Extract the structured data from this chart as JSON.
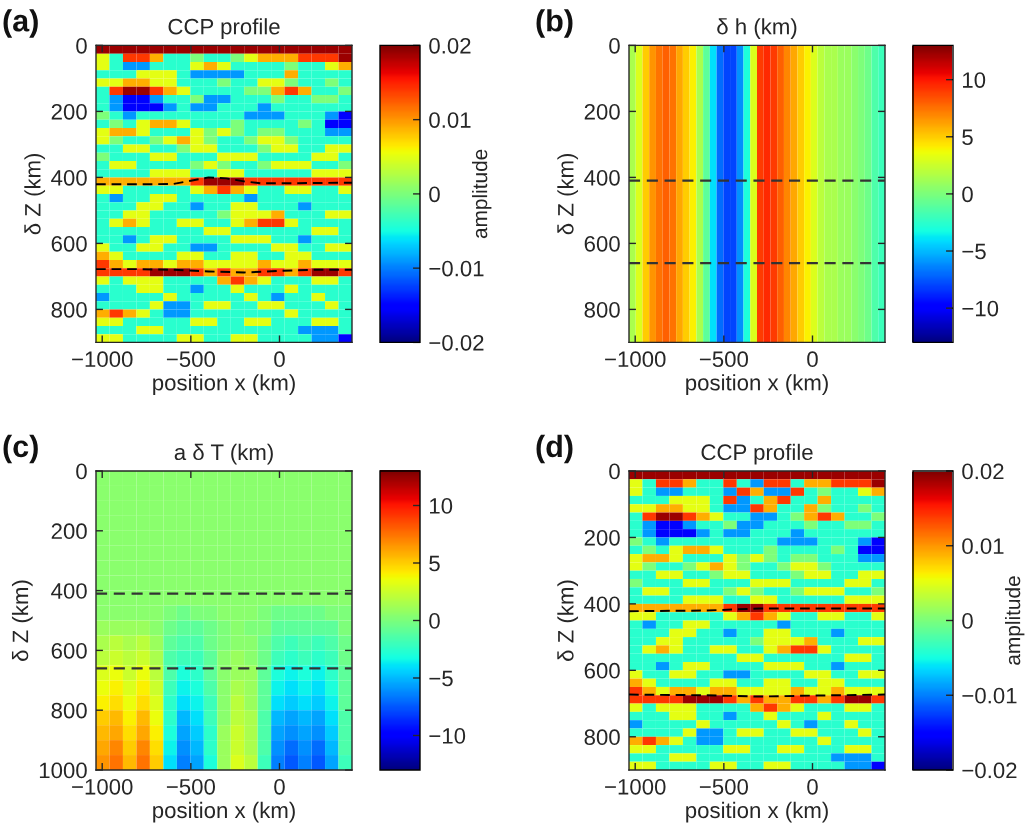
{
  "chart_data": [
    {
      "type": "heatmap",
      "title": "CCP profile",
      "xlabel": "position x (km)",
      "ylabel": "δ Z (km)",
      "clabel": "amplitude",
      "annotations": [
        "(a)"
      ],
      "xlim": [
        -1035,
        409
      ],
      "xticks": [
        -1000,
        -500,
        0
      ],
      "ylim": [
        900,
        0
      ],
      "yticks": [
        0,
        200,
        400,
        600,
        800
      ],
      "clim": [
        -0.02,
        0.02
      ],
      "cticks": [
        -0.02,
        -0.01,
        0,
        0.01,
        0.02
      ],
      "x": [
        -997,
        -921,
        -845,
        -769,
        -693,
        -617,
        -541,
        -465,
        -389,
        -313,
        -237,
        -161,
        -85,
        -9,
        67,
        143,
        219,
        295,
        371
      ],
      "cells": [
        [
          0.019,
          0.019,
          0.019,
          0.019,
          0.019,
          0.019,
          0.019,
          0.019,
          0.019,
          0.019,
          0.019,
          0.019,
          0.019,
          0.019,
          0.019,
          0.019,
          0.019,
          0.019,
          0.019
        ],
        [
          0.005,
          -0.004,
          0.014,
          0.014,
          0.009,
          -0.004,
          -0.004,
          0,
          -0.004,
          -0.004,
          0,
          0.005,
          0.009,
          0.009,
          0.009,
          0.014,
          0.014,
          0.014,
          0.019
        ],
        [
          0.005,
          -0.004,
          -0.009,
          -0.009,
          -0.004,
          -0.004,
          -0.004,
          0.005,
          0.009,
          0.005,
          -0.004,
          -0.004,
          -0.004,
          -0.004,
          0,
          -0.004,
          -0.004,
          0.005,
          0.009
        ],
        [
          -0.004,
          -0.004,
          -0.004,
          0.005,
          0.005,
          0.005,
          -0.004,
          -0.009,
          -0.009,
          -0.009,
          -0.009,
          -0.004,
          -0.004,
          -0.004,
          0.009,
          -0.004,
          -0.004,
          -0.004,
          -0.004
        ],
        [
          0.005,
          0.005,
          0.009,
          0.009,
          0.005,
          0.005,
          -0.004,
          -0.004,
          -0.004,
          0,
          -0.004,
          -0.004,
          0.005,
          0.005,
          0,
          -0.004,
          -0.004,
          0,
          -0.004
        ],
        [
          -0.004,
          0.014,
          0.019,
          0.019,
          0.014,
          0.009,
          0.005,
          -0.004,
          -0.004,
          -0.004,
          -0.004,
          0,
          0,
          0.009,
          0.014,
          0.009,
          -0.004,
          -0.004,
          0
        ],
        [
          -0.004,
          -0.009,
          -0.015,
          -0.015,
          -0.009,
          -0.004,
          -0.004,
          0,
          -0.009,
          -0.009,
          -0.004,
          -0.004,
          -0.004,
          0,
          -0.004,
          -0.004,
          0,
          0,
          -0.004
        ],
        [
          -0.004,
          -0.009,
          -0.015,
          -0.015,
          -0.015,
          -0.009,
          -0.004,
          -0.009,
          -0.009,
          -0.004,
          -0.004,
          -0.004,
          -0.009,
          -0.004,
          -0.004,
          -0.004,
          -0.004,
          -0.004,
          -0.004
        ],
        [
          0,
          -0.004,
          -0.009,
          -0.004,
          -0.004,
          -0.004,
          -0.004,
          -0.004,
          -0.004,
          -0.004,
          -0.004,
          -0.009,
          -0.009,
          -0.009,
          -0.004,
          -0.004,
          -0.004,
          -0.009,
          -0.015
        ],
        [
          -0.004,
          0,
          -0.004,
          0.005,
          0.009,
          0.009,
          0.005,
          -0.004,
          -0.004,
          -0.004,
          0,
          -0.004,
          -0.004,
          -0.004,
          -0.004,
          0,
          -0.004,
          -0.015,
          -0.015
        ],
        [
          0.005,
          0.009,
          0.009,
          0.005,
          -0.004,
          -0.004,
          -0.004,
          0.005,
          0,
          0.005,
          0,
          -0.004,
          0,
          0,
          -0.004,
          -0.004,
          -0.004,
          -0.009,
          -0.009
        ],
        [
          0.005,
          0,
          -0.004,
          -0.004,
          0,
          0.005,
          0.009,
          0.005,
          0,
          -0.004,
          -0.004,
          0,
          0.005,
          0.005,
          0,
          -0.004,
          -0.004,
          -0.004,
          -0.004
        ],
        [
          -0.004,
          -0.004,
          0.005,
          0.005,
          -0.004,
          -0.004,
          0,
          0.005,
          0.005,
          -0.004,
          -0.004,
          -0.004,
          0,
          0.005,
          0.005,
          -0.004,
          -0.004,
          0.005,
          0.005
        ],
        [
          0,
          -0.004,
          -0.004,
          -0.004,
          0.005,
          0.005,
          -0.004,
          -0.004,
          -0.004,
          0.005,
          0.005,
          0.005,
          -0.004,
          -0.004,
          -0.004,
          -0.004,
          0.005,
          0.005,
          -0.004
        ],
        [
          -0.004,
          0.005,
          0.005,
          -0.004,
          -0.004,
          -0.004,
          -0.004,
          0,
          0.005,
          0,
          -0.004,
          -0.004,
          0,
          0.005,
          0.005,
          0.005,
          -0.004,
          -0.004,
          0
        ],
        [
          -0.004,
          -0.004,
          -0.004,
          -0.004,
          0.005,
          0.005,
          0.005,
          -0.004,
          -0.004,
          0.005,
          0.005,
          -0.004,
          -0.004,
          -0.004,
          -0.004,
          -0.004,
          0.005,
          0.005,
          0.005
        ],
        [
          0.009,
          0.009,
          0.009,
          0.009,
          0.009,
          0.009,
          0.009,
          0.014,
          0.019,
          0.019,
          0.019,
          0.014,
          0.014,
          0.014,
          0.014,
          0.014,
          0.014,
          0.014,
          0.014
        ],
        [
          0.005,
          0.005,
          -0.004,
          -0.004,
          -0.004,
          -0.004,
          -0.004,
          0.005,
          0.009,
          0.014,
          0.009,
          0.005,
          -0.004,
          -0.004,
          0.005,
          0.005,
          -0.004,
          -0.004,
          0.005
        ],
        [
          -0.004,
          -0.009,
          -0.004,
          -0.004,
          0.005,
          0.005,
          -0.004,
          -0.004,
          -0.004,
          -0.004,
          -0.004,
          -0.009,
          -0.004,
          -0.004,
          -0.004,
          -0.004,
          -0.004,
          -0.004,
          -0.004
        ],
        [
          -0.004,
          -0.004,
          -0.004,
          0.005,
          0.005,
          -0.004,
          -0.004,
          -0.009,
          -0.004,
          -0.004,
          0.005,
          0.005,
          -0.004,
          -0.004,
          -0.004,
          -0.009,
          -0.004,
          -0.004,
          -0.004
        ],
        [
          -0.004,
          -0.004,
          0.005,
          0.005,
          -0.004,
          -0.004,
          -0.004,
          -0.004,
          -0.004,
          0,
          0.005,
          0.005,
          0.005,
          0.009,
          -0.004,
          -0.004,
          -0.004,
          0.005,
          0.005
        ],
        [
          -0.004,
          0.005,
          0.009,
          0.005,
          -0.004,
          -0.004,
          0.005,
          0.005,
          -0.004,
          -0.004,
          0.005,
          0.009,
          0.014,
          0.014,
          0.005,
          -0.004,
          -0.004,
          -0.004,
          -0.004
        ],
        [
          -0.004,
          -0.004,
          -0.004,
          -0.004,
          -0.004,
          -0.004,
          -0.004,
          -0.004,
          0.005,
          0.005,
          -0.004,
          -0.004,
          -0.004,
          -0.004,
          -0.004,
          -0.004,
          0.005,
          0.005,
          -0.004
        ],
        [
          -0.004,
          -0.004,
          -0.009,
          -0.004,
          0.005,
          0.005,
          -0.004,
          -0.004,
          -0.004,
          -0.004,
          0.005,
          0.005,
          0.005,
          -0.004,
          -0.004,
          -0.009,
          -0.004,
          -0.004,
          -0.004
        ],
        [
          0.005,
          -0.004,
          -0.004,
          0.005,
          0.005,
          -0.004,
          -0.004,
          -0.009,
          -0.009,
          -0.004,
          -0.004,
          -0.004,
          -0.004,
          0.005,
          0.005,
          -0.004,
          -0.004,
          0.005,
          0.005
        ],
        [
          0.009,
          0.005,
          -0.004,
          -0.004,
          -0.004,
          -0.004,
          0.005,
          0.005,
          -0.004,
          -0.004,
          0.005,
          0.005,
          -0.004,
          -0.004,
          0.005,
          0.005,
          -0.004,
          -0.004,
          -0.004
        ],
        [
          0.014,
          0.009,
          0.005,
          0.009,
          0.009,
          0.005,
          0.009,
          0.009,
          0.005,
          0.005,
          0.005,
          0.005,
          0.009,
          0.005,
          0.005,
          0.009,
          0.005,
          0.005,
          0.005
        ],
        [
          0.014,
          0.014,
          0.014,
          0.014,
          0.019,
          0.019,
          0.019,
          0.014,
          0.009,
          0.014,
          0.009,
          0.009,
          0.014,
          0.014,
          0.009,
          0.014,
          0.019,
          0.019,
          0.014
        ],
        [
          0.005,
          -0.004,
          0.005,
          0.005,
          0.005,
          -0.004,
          -0.004,
          -0.004,
          -0.004,
          0.009,
          0.014,
          0.009,
          0.005,
          -0.004,
          -0.004,
          -0.004,
          0.005,
          0.005,
          -0.004
        ],
        [
          -0.004,
          -0.004,
          -0.004,
          0.005,
          0.005,
          -0.004,
          -0.004,
          -0.009,
          -0.004,
          -0.004,
          0.005,
          -0.004,
          -0.004,
          -0.004,
          0.005,
          -0.004,
          -0.004,
          -0.004,
          -0.004
        ],
        [
          -0.009,
          -0.004,
          -0.004,
          -0.004,
          -0.004,
          0.005,
          -0.004,
          -0.004,
          -0.004,
          -0.004,
          -0.004,
          0.005,
          -0.004,
          -0.009,
          -0.004,
          -0.004,
          0.005,
          -0.004,
          -0.004
        ],
        [
          -0.004,
          -0.004,
          -0.004,
          -0.004,
          0.005,
          -0.009,
          -0.009,
          -0.004,
          0.005,
          0.005,
          -0.004,
          -0.004,
          0.005,
          0.005,
          -0.004,
          -0.004,
          -0.004,
          0.005,
          -0.004
        ],
        [
          0.009,
          0.014,
          0.009,
          0.005,
          -0.004,
          -0.009,
          -0.009,
          -0.004,
          -0.004,
          -0.004,
          -0.004,
          -0.004,
          -0.004,
          -0.004,
          0.005,
          -0.004,
          -0.004,
          -0.004,
          -0.004
        ],
        [
          0.005,
          0.005,
          -0.004,
          -0.004,
          -0.004,
          -0.004,
          -0.004,
          0.005,
          0.005,
          -0.004,
          -0.004,
          0.005,
          0.005,
          -0.004,
          -0.004,
          -0.004,
          0.005,
          0.005,
          -0.004
        ],
        [
          -0.004,
          -0.004,
          -0.004,
          0.005,
          0.005,
          -0.004,
          -0.004,
          -0.004,
          -0.004,
          -0.004,
          -0.004,
          -0.004,
          -0.004,
          -0.004,
          -0.004,
          -0.009,
          -0.009,
          -0.009,
          -0.004
        ],
        [
          0.005,
          0.005,
          -0.004,
          -0.004,
          -0.004,
          -0.004,
          0.005,
          0.005,
          -0.004,
          -0.004,
          0.005,
          0.005,
          -0.004,
          -0.004,
          -0.004,
          -0.004,
          -0.009,
          -0.009,
          -0.015
        ]
      ],
      "series": [
        {
          "type": "line",
          "color": "#000000",
          "line_style": "dashed",
          "x": [
            -1035,
            -800,
            -600,
            -500,
            -400,
            -300,
            -200,
            -100,
            0,
            200,
            409
          ],
          "values": [
            421,
            421,
            420,
            410,
            400,
            403,
            412,
            418,
            418,
            417,
            416
          ]
        },
        {
          "type": "line",
          "color": "#000000",
          "line_style": "dashed",
          "x": [
            -1035,
            -800,
            -600,
            -400,
            -200,
            -100,
            0,
            200,
            409
          ],
          "values": [
            678,
            678,
            680,
            685,
            688,
            686,
            683,
            680,
            680
          ]
        }
      ]
    },
    {
      "type": "heatmap",
      "title": "δ h (km)",
      "xlabel": "position x (km)",
      "ylabel": "δ Z (km)",
      "annotations": [
        "(b)"
      ],
      "xlim": [
        -1035,
        409
      ],
      "xticks": [
        -1000,
        -500,
        0
      ],
      "ylim": [
        900,
        0
      ],
      "yticks": [
        0,
        200,
        400,
        600,
        800
      ],
      "clim": [
        -13,
        13
      ],
      "cticks": [
        -10,
        -5,
        0,
        5,
        10
      ],
      "x": [
        -1016,
        -978,
        -940,
        -902,
        -864,
        -826,
        -788,
        -750,
        -712,
        -674,
        -636,
        -598,
        -560,
        -522,
        -484,
        -446,
        -408,
        -370,
        -332,
        -294,
        -256,
        -218,
        -180,
        -142,
        -104,
        -66,
        -28,
        10,
        48,
        86,
        124,
        162,
        200,
        238,
        276,
        314,
        352,
        390
      ],
      "cells": [
        [
          1.5,
          3,
          5,
          6.5,
          7.5,
          8,
          7.5,
          6,
          5,
          4,
          1.5,
          -1,
          -4,
          -7,
          -8,
          -8,
          -6,
          -3,
          3,
          9,
          9.5,
          9,
          8,
          7,
          6,
          5,
          4,
          3,
          2,
          1.5,
          1.5,
          1,
          1,
          0.5,
          0,
          -0.5,
          -1.5,
          -2
        ]
      ],
      "ref_lines": [
        {
          "axis": "y",
          "value": 410,
          "color": "#333333",
          "line_style": "dashed"
        },
        {
          "axis": "y",
          "value": 660,
          "color": "#333333",
          "line_style": "dashed"
        }
      ]
    },
    {
      "type": "heatmap",
      "title": "a δ T (km)",
      "xlabel": "position x (km)",
      "ylabel": "δ Z (km)",
      "annotations": [
        "(c)"
      ],
      "xlim": [
        -1035,
        409
      ],
      "xticks": [
        -1000,
        -500,
        0
      ],
      "ylim": [
        1000,
        0
      ],
      "yticks": [
        0,
        200,
        400,
        600,
        800,
        1000
      ],
      "clim": [
        -13,
        13
      ],
      "cticks": [
        -10,
        -5,
        0,
        5,
        10
      ],
      "x": [
        -997,
        -921,
        -845,
        -769,
        -693,
        -617,
        -541,
        -465,
        -389,
        -313,
        -237,
        -161,
        -85,
        -9,
        67,
        143,
        219,
        295,
        371
      ],
      "cells": [
        [
          0.5,
          0.5,
          0.5,
          0.5,
          0.5,
          0.5,
          0.5,
          0.5,
          0.5,
          0.5,
          0.5,
          0.5,
          0.5,
          0.5,
          0.5,
          0.5,
          0.5,
          0.5,
          0.5
        ],
        [
          0.5,
          0.5,
          0.5,
          0.5,
          0.5,
          0.5,
          0.5,
          0.5,
          0.5,
          0.5,
          0.5,
          0.5,
          0.5,
          0.5,
          0.5,
          0.5,
          0.5,
          0.5,
          0.5
        ],
        [
          0.5,
          0.5,
          0.5,
          0.5,
          0.5,
          0.5,
          0.5,
          0.5,
          0.5,
          0.5,
          0.5,
          0.5,
          0.5,
          0.5,
          0.5,
          0.5,
          0.5,
          0.5,
          0.5
        ],
        [
          0.5,
          0.5,
          0.5,
          0.5,
          0.5,
          0.5,
          0.5,
          0.5,
          0.5,
          0.5,
          0.5,
          0.5,
          0.5,
          0.5,
          0.5,
          0.5,
          0.5,
          0.5,
          0.5
        ],
        [
          0.5,
          0.5,
          0.5,
          0.5,
          0.5,
          0.5,
          0.5,
          0.5,
          0.5,
          0.5,
          0.5,
          0.5,
          0.5,
          0.5,
          0.5,
          0.5,
          0.5,
          0.5,
          0.5
        ],
        [
          0.5,
          0.5,
          0.5,
          0.5,
          0.5,
          0.5,
          0.5,
          0.5,
          0.5,
          0.5,
          0.5,
          0.5,
          0.5,
          0.5,
          0.5,
          0.5,
          0.5,
          0.5,
          0.5
        ],
        [
          0.5,
          0.5,
          0.5,
          0.5,
          0.5,
          0.5,
          0.5,
          0.5,
          0.5,
          0.5,
          0.5,
          0.5,
          0.5,
          0.5,
          0.5,
          0.5,
          0.5,
          0.5,
          0.5
        ],
        [
          0.5,
          0.5,
          0.5,
          0.5,
          0.5,
          0.5,
          0.5,
          0.5,
          0.5,
          0.5,
          0.5,
          0.5,
          0.5,
          0.5,
          0.5,
          0.5,
          0.5,
          0.5,
          0.5
        ],
        [
          0.5,
          0.5,
          0.5,
          0.5,
          0.5,
          0.5,
          0.5,
          0.5,
          0.5,
          0.5,
          0.5,
          0.5,
          0.5,
          0.5,
          0.5,
          0.5,
          0.5,
          0.5,
          0.5
        ],
        [
          0.5,
          0.5,
          0.5,
          0.5,
          0.5,
          0,
          -0.5,
          0,
          0,
          0.5,
          0.5,
          0.5,
          0,
          -0.5,
          -0.5,
          -0.5,
          -0.5,
          0,
          0
        ],
        [
          1,
          1,
          1,
          1,
          0.5,
          -0.5,
          -1,
          -1,
          -0.5,
          0,
          0.5,
          0,
          0,
          -1,
          -1,
          -1,
          -1,
          -1,
          0
        ],
        [
          1.5,
          2,
          1.5,
          2,
          1,
          -1,
          -1.5,
          -1.5,
          -0.5,
          0,
          0.5,
          0.5,
          -0.5,
          -1.5,
          -2,
          -1.5,
          -2,
          -1.5,
          -0.5
        ],
        [
          2,
          2.5,
          2,
          2.5,
          1.5,
          -1.5,
          -2,
          -2,
          -1,
          0.5,
          1,
          0.5,
          -0.5,
          -2,
          -2.5,
          -2,
          -2.5,
          -2,
          -0.5
        ],
        [
          3,
          3.5,
          2.5,
          3.5,
          2,
          -1.5,
          -3,
          -2.5,
          -1,
          0.5,
          1,
          1,
          -1,
          -3,
          -3.5,
          -3,
          -3.5,
          -2.5,
          -1
        ],
        [
          3.5,
          4,
          3,
          4,
          2.5,
          -2,
          -3.5,
          -3,
          -1.5,
          0.5,
          1.5,
          1,
          -1,
          -3.5,
          -4,
          -3.5,
          -4,
          -3,
          -1
        ],
        [
          4,
          4.5,
          3.5,
          4.5,
          3,
          -2.5,
          -4,
          -3.5,
          -2,
          0.5,
          2,
          1,
          -1,
          -4,
          -4.5,
          -4,
          -4.5,
          -3.5,
          -1
        ],
        [
          5,
          5.5,
          4,
          5.5,
          3.5,
          -2.5,
          -5,
          -4,
          -2,
          0.5,
          2,
          1.5,
          -1.5,
          -5,
          -5.5,
          -5,
          -5.5,
          -4,
          -1.5
        ],
        [
          5.5,
          6,
          4.5,
          6,
          4,
          -3,
          -5.5,
          -4.5,
          -2.5,
          1,
          2.5,
          1.5,
          -1.5,
          -5.5,
          -6,
          -5.5,
          -6,
          -4.5,
          -1.5
        ],
        [
          6,
          7,
          5,
          7,
          4.5,
          -3.5,
          -6,
          -5,
          -2.5,
          1,
          2.5,
          1.5,
          -1.5,
          -6,
          -7,
          -6,
          -7,
          -5,
          -1.5
        ],
        [
          6.5,
          7.5,
          5.5,
          7.5,
          5,
          -4,
          -6.5,
          -5.5,
          -3,
          1,
          3,
          2,
          -2,
          -6.5,
          -7.5,
          -6.5,
          -7.5,
          -5.5,
          -2
        ]
      ],
      "ref_lines": [
        {
          "axis": "y",
          "value": 410,
          "color": "#333333",
          "line_style": "dashed"
        },
        {
          "axis": "y",
          "value": 660,
          "color": "#333333",
          "line_style": "dashed"
        }
      ]
    },
    {
      "type": "heatmap",
      "title": "CCP profile",
      "xlabel": "position x (km)",
      "ylabel": "δ Z (km)",
      "clabel": "amplitude",
      "annotations": [
        "(d)"
      ],
      "xlim": [
        -1035,
        409
      ],
      "xticks": [
        -1000,
        -500,
        0
      ],
      "ylim": [
        900,
        0
      ],
      "yticks": [
        0,
        200,
        400,
        600,
        800
      ],
      "clim": [
        -0.02,
        0.02
      ],
      "cticks": [
        -0.02,
        -0.01,
        0,
        0.01,
        0.02
      ],
      "x": [
        -997,
        -921,
        -845,
        -769,
        -693,
        -617,
        -541,
        -465,
        -389,
        -313,
        -237,
        -161,
        -85,
        -9,
        67,
        143,
        219,
        295,
        371
      ],
      "cells": [
        [
          0.019,
          0.019,
          0.019,
          0.019,
          0.019,
          0.019,
          0.019,
          0.019,
          0.019,
          0.019,
          0.019,
          0.019,
          0.019,
          0.019,
          0.019,
          0.019,
          0.019,
          0.019,
          0.019
        ],
        [
          0.005,
          -0.004,
          0.014,
          0.014,
          0.009,
          -0.004,
          -0.004,
          0.014,
          -0.004,
          -0.009,
          0.014,
          0.014,
          -0.004,
          0.009,
          0.009,
          0.014,
          0.014,
          0.014,
          0.019
        ],
        [
          0.005,
          -0.004,
          -0.009,
          -0.009,
          -0.004,
          -0.004,
          -0.004,
          -0.009,
          0.014,
          0.009,
          -0.009,
          -0.009,
          0.014,
          -0.004,
          0,
          -0.004,
          -0.004,
          0.005,
          0.009
        ],
        [
          -0.004,
          -0.004,
          -0.004,
          0.005,
          0.005,
          0.005,
          -0.004,
          0.014,
          -0.009,
          -0.004,
          0.009,
          0.014,
          -0.004,
          -0.004,
          0.009,
          -0.004,
          -0.004,
          -0.004,
          -0.004
        ],
        [
          0.005,
          0.005,
          0.009,
          0.009,
          0.005,
          0.005,
          -0.004,
          -0.009,
          -0.009,
          0.014,
          0.009,
          -0.004,
          -0.004,
          0.009,
          0,
          -0.004,
          -0.004,
          0,
          -0.004
        ],
        [
          -0.004,
          0.014,
          0.019,
          0.019,
          0.014,
          0.009,
          0.005,
          -0.004,
          -0.004,
          -0.009,
          -0.009,
          -0.004,
          0,
          0.009,
          0.014,
          0.009,
          -0.004,
          -0.004,
          0
        ],
        [
          -0.004,
          -0.009,
          -0.015,
          -0.015,
          -0.009,
          -0.004,
          -0.004,
          0,
          -0.009,
          -0.009,
          -0.004,
          -0.004,
          -0.004,
          0,
          -0.004,
          -0.004,
          0,
          0,
          -0.004
        ],
        [
          -0.004,
          -0.009,
          -0.015,
          -0.015,
          -0.015,
          -0.009,
          -0.004,
          -0.009,
          -0.009,
          -0.004,
          -0.004,
          -0.004,
          -0.009,
          -0.004,
          -0.004,
          -0.004,
          -0.004,
          -0.004,
          -0.004
        ],
        [
          0,
          -0.004,
          -0.009,
          -0.004,
          -0.004,
          -0.004,
          -0.004,
          -0.004,
          -0.004,
          -0.004,
          -0.004,
          -0.009,
          -0.009,
          -0.009,
          -0.004,
          -0.004,
          -0.004,
          -0.009,
          -0.015
        ],
        [
          -0.004,
          0,
          -0.004,
          0.005,
          0.009,
          0.009,
          0.005,
          -0.004,
          -0.004,
          -0.004,
          0,
          -0.004,
          -0.004,
          -0.004,
          -0.004,
          0,
          -0.004,
          -0.015,
          -0.015
        ],
        [
          0.005,
          0.009,
          0.009,
          0.005,
          -0.004,
          -0.004,
          -0.004,
          0.005,
          0,
          0.005,
          0,
          -0.004,
          0,
          0,
          -0.004,
          -0.004,
          -0.004,
          -0.009,
          -0.009
        ],
        [
          0.005,
          0,
          -0.004,
          -0.004,
          0,
          0.005,
          0.009,
          0.005,
          0,
          -0.004,
          -0.004,
          0,
          0.005,
          0.005,
          0,
          -0.004,
          -0.004,
          -0.004,
          -0.004
        ],
        [
          -0.004,
          -0.004,
          0.005,
          0.005,
          -0.004,
          -0.004,
          0,
          0.005,
          0.005,
          -0.004,
          -0.004,
          -0.004,
          0,
          0.005,
          0.005,
          -0.004,
          -0.004,
          0.005,
          0.005
        ],
        [
          0,
          -0.004,
          -0.004,
          -0.004,
          0.005,
          0.005,
          -0.004,
          -0.004,
          -0.004,
          0.005,
          0.005,
          0.005,
          -0.004,
          -0.004,
          -0.004,
          -0.004,
          0.005,
          0.005,
          -0.004
        ],
        [
          -0.004,
          0.005,
          0.005,
          -0.004,
          -0.004,
          -0.004,
          -0.004,
          0,
          0.005,
          0,
          -0.004,
          -0.004,
          0,
          0.005,
          0.005,
          0.005,
          -0.004,
          -0.004,
          0
        ],
        [
          -0.004,
          -0.004,
          -0.004,
          -0.004,
          0.005,
          0.005,
          0.005,
          -0.004,
          -0.004,
          0.005,
          0.005,
          -0.004,
          -0.004,
          -0.004,
          -0.004,
          -0.004,
          0.005,
          0.005,
          0.005
        ],
        [
          0.009,
          0.009,
          0.009,
          0.009,
          0.009,
          0.009,
          0.009,
          0.014,
          0.019,
          0.019,
          0.014,
          0.014,
          0.014,
          0.014,
          0.014,
          0.014,
          0.014,
          0.014,
          0.014
        ],
        [
          0.005,
          0.005,
          -0.004,
          -0.004,
          -0.004,
          -0.004,
          -0.004,
          0.005,
          0.009,
          0.014,
          0.009,
          0.005,
          -0.004,
          -0.004,
          0.005,
          0.005,
          -0.004,
          -0.004,
          0.005
        ],
        [
          -0.004,
          -0.009,
          -0.004,
          -0.004,
          0.005,
          0.005,
          -0.004,
          -0.004,
          -0.004,
          -0.004,
          -0.004,
          -0.009,
          -0.004,
          -0.004,
          -0.004,
          -0.004,
          -0.004,
          -0.004,
          -0.004
        ],
        [
          -0.004,
          -0.004,
          -0.004,
          0.005,
          0.005,
          -0.004,
          -0.004,
          -0.009,
          -0.004,
          -0.004,
          0.005,
          0.005,
          -0.004,
          -0.004,
          -0.004,
          -0.009,
          -0.004,
          -0.004,
          -0.004
        ],
        [
          -0.004,
          -0.004,
          0.005,
          0.005,
          -0.004,
          -0.004,
          -0.004,
          -0.004,
          -0.004,
          0,
          0.005,
          0.005,
          0.005,
          0.009,
          -0.004,
          -0.004,
          -0.004,
          0.005,
          0.005
        ],
        [
          -0.004,
          0.005,
          0.009,
          0.005,
          -0.004,
          -0.004,
          0.005,
          0.005,
          -0.004,
          -0.004,
          0.005,
          0.009,
          0.014,
          0.014,
          0.005,
          -0.004,
          -0.004,
          -0.004,
          -0.004
        ],
        [
          -0.004,
          -0.004,
          -0.004,
          -0.004,
          -0.004,
          -0.004,
          -0.004,
          -0.004,
          0.005,
          0.005,
          -0.004,
          -0.004,
          -0.004,
          -0.004,
          -0.004,
          -0.004,
          0.005,
          0.005,
          -0.004
        ],
        [
          -0.004,
          -0.004,
          -0.009,
          -0.004,
          0.005,
          0.005,
          -0.004,
          -0.004,
          -0.004,
          -0.004,
          0.005,
          0.005,
          0.005,
          -0.004,
          -0.004,
          -0.009,
          -0.004,
          -0.004,
          -0.004
        ],
        [
          0.005,
          -0.004,
          -0.004,
          0.005,
          0.005,
          -0.004,
          -0.004,
          -0.009,
          -0.009,
          -0.004,
          -0.004,
          -0.004,
          -0.004,
          0.005,
          0.005,
          -0.004,
          -0.004,
          0.005,
          0.005
        ],
        [
          0.009,
          0.005,
          -0.004,
          -0.004,
          -0.004,
          -0.004,
          0.005,
          0.005,
          -0.004,
          -0.004,
          0.005,
          0.005,
          -0.004,
          -0.004,
          0.005,
          0.005,
          -0.004,
          -0.004,
          -0.004
        ],
        [
          0.014,
          0.009,
          0.005,
          0.009,
          0.009,
          0.005,
          0.009,
          0.009,
          0.005,
          0.005,
          0.005,
          0.005,
          0.009,
          0.005,
          0.005,
          0.009,
          0.005,
          0.005,
          0.005
        ],
        [
          0.014,
          0.014,
          0.014,
          0.014,
          0.019,
          0.019,
          0.019,
          0.014,
          0.009,
          0.014,
          0.009,
          0.009,
          0.014,
          0.014,
          0.009,
          0.014,
          0.019,
          0.019,
          0.014
        ],
        [
          0.005,
          -0.004,
          0.005,
          0.005,
          0.005,
          -0.004,
          -0.004,
          -0.004,
          -0.004,
          0.009,
          0.014,
          0.009,
          0.005,
          -0.004,
          -0.004,
          -0.004,
          0.005,
          0.005,
          -0.004
        ],
        [
          -0.004,
          -0.004,
          -0.004,
          0.005,
          0.005,
          -0.004,
          -0.004,
          -0.009,
          -0.004,
          -0.004,
          0.005,
          -0.004,
          -0.004,
          -0.004,
          0.005,
          -0.004,
          -0.004,
          -0.004,
          -0.004
        ],
        [
          -0.009,
          -0.004,
          -0.004,
          -0.004,
          -0.004,
          0.005,
          -0.004,
          -0.004,
          -0.004,
          -0.004,
          -0.004,
          0.005,
          -0.004,
          -0.009,
          -0.004,
          -0.004,
          0.005,
          -0.004,
          -0.004
        ],
        [
          -0.004,
          -0.004,
          -0.004,
          -0.004,
          0.005,
          -0.009,
          -0.009,
          -0.004,
          0.005,
          0.005,
          -0.004,
          -0.004,
          0.005,
          0.005,
          -0.004,
          -0.004,
          -0.004,
          0.005,
          -0.004
        ],
        [
          0.009,
          0.014,
          0.009,
          0.005,
          -0.004,
          -0.009,
          -0.009,
          -0.004,
          -0.004,
          -0.004,
          -0.004,
          -0.004,
          -0.004,
          -0.004,
          0.005,
          -0.004,
          -0.004,
          -0.004,
          -0.004
        ],
        [
          0.005,
          0.005,
          -0.004,
          -0.004,
          -0.004,
          -0.004,
          -0.004,
          0.005,
          0.005,
          -0.004,
          -0.004,
          0.005,
          0.005,
          -0.004,
          -0.004,
          -0.004,
          0.005,
          0.005,
          -0.004
        ],
        [
          -0.004,
          -0.004,
          -0.004,
          0.005,
          0.005,
          -0.004,
          -0.004,
          -0.004,
          -0.004,
          -0.004,
          -0.004,
          -0.004,
          -0.004,
          -0.004,
          -0.004,
          -0.009,
          -0.009,
          -0.009,
          -0.004
        ],
        [
          0.005,
          0.005,
          -0.004,
          -0.004,
          -0.004,
          -0.004,
          0.005,
          0.005,
          -0.004,
          -0.004,
          0.005,
          0.005,
          -0.004,
          -0.004,
          -0.004,
          -0.004,
          -0.009,
          -0.009,
          -0.015
        ]
      ],
      "series": [
        {
          "type": "line",
          "color": "#000000",
          "line_style": "dashed",
          "x": [
            -1035,
            -600,
            -300,
            0,
            409
          ],
          "values": [
            422,
            420,
            414,
            414,
            414
          ]
        },
        {
          "type": "line",
          "color": "#000000",
          "line_style": "dashed",
          "x": [
            -1035,
            -600,
            -300,
            0,
            409
          ],
          "values": [
            673,
            675,
            679,
            676,
            673
          ]
        }
      ]
    }
  ]
}
